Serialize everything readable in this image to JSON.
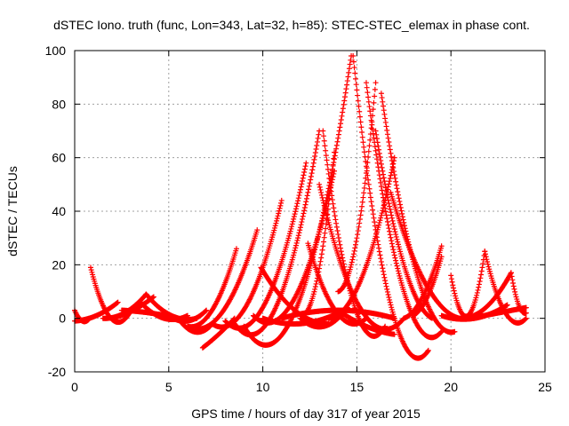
{
  "chart_data": {
    "type": "scatter",
    "title": "dSTEC Iono. truth (func, Lon=343, Lat=32, h=85): STEC-STEC_elemax in phase cont.",
    "xlabel": "GPS time / hours of day 317 of year 2015",
    "ylabel": "dSTEC  / TECUs",
    "xlim": [
      0,
      25
    ],
    "ylim": [
      -20,
      100
    ],
    "xticks": [
      "0",
      "5",
      "10",
      "15",
      "20",
      "25"
    ],
    "yticks": [
      "-20",
      "0",
      "20",
      "40",
      "60",
      "80",
      "100"
    ],
    "grid": true,
    "legend": "none",
    "marker": "plus",
    "color": "#ff0000",
    "arcs": [
      {
        "t0": 0.0,
        "t1": 0.8,
        "v0": 3,
        "vm": -1,
        "v1": 0
      },
      {
        "t0": 0.85,
        "t1": 3.0,
        "v0": 19,
        "vm": 0,
        "v1": 3
      },
      {
        "t0": 0.0,
        "t1": 2.3,
        "v0": -1,
        "vm": 1,
        "v1": 6
      },
      {
        "t0": 1.5,
        "t1": 3.8,
        "v0": 0,
        "vm": 2,
        "v1": 9
      },
      {
        "t0": 2.0,
        "t1": 4.2,
        "v0": 0,
        "vm": 3,
        "v1": 8
      },
      {
        "t0": 3.8,
        "t1": 6.5,
        "v0": 9,
        "vm": 1,
        "v1": 0
      },
      {
        "t0": 3.5,
        "t1": 6.0,
        "v0": 6,
        "vm": 0,
        "v1": 1
      },
      {
        "t0": 2.5,
        "t1": 5.5,
        "v0": 3,
        "vm": 2,
        "v1": 0
      },
      {
        "t0": 5.0,
        "t1": 7.0,
        "v0": 1,
        "vm": -1,
        "v1": 3
      },
      {
        "t0": 5.5,
        "t1": 7.2,
        "v0": 0,
        "vm": -5,
        "v1": -3
      },
      {
        "t0": 6.8,
        "t1": 8.5,
        "v0": -11,
        "vm": -6,
        "v1": 0
      },
      {
        "t0": 6.0,
        "t1": 8.6,
        "v0": -3,
        "vm": 3,
        "v1": 26
      },
      {
        "t0": 6.5,
        "t1": 9.7,
        "v0": -4,
        "vm": 5,
        "v1": 33
      },
      {
        "t0": 7.3,
        "t1": 11.0,
        "v0": -2,
        "vm": 5,
        "v1": 44
      },
      {
        "t0": 8.0,
        "t1": 12.3,
        "v0": -1,
        "vm": 6,
        "v1": 58
      },
      {
        "t0": 8.5,
        "t1": 13.0,
        "v0": -2,
        "vm": 5,
        "v1": 70
      },
      {
        "t0": 9.0,
        "t1": 14.7,
        "v0": -3,
        "vm": 5,
        "v1": 98
      },
      {
        "t0": 9.9,
        "t1": 13.5,
        "v0": 19,
        "vm": 3,
        "v1": -2
      },
      {
        "t0": 9.5,
        "t1": 13.8,
        "v0": 1,
        "vm": 7,
        "v1": 55
      },
      {
        "t0": 12.4,
        "t1": 15.5,
        "v0": 28,
        "vm": 2,
        "v1": 0
      },
      {
        "t0": 12.0,
        "t1": 13.8,
        "v0": 1,
        "vm": 15,
        "v1": 62
      },
      {
        "t0": 13.2,
        "t1": 16.5,
        "v0": 70,
        "vm": 5,
        "v1": -3
      },
      {
        "t0": 13.0,
        "t1": 17.5,
        "v0": 50,
        "vm": 3,
        "v1": 0
      },
      {
        "t0": 14.0,
        "t1": 16.0,
        "v0": 10,
        "vm": 30,
        "v1": 88
      },
      {
        "t0": 13.5,
        "t1": 17.0,
        "v0": 0,
        "vm": 15,
        "v1": 60
      },
      {
        "t0": 14.8,
        "t1": 18.8,
        "v0": 98,
        "vm": 5,
        "v1": -12
      },
      {
        "t0": 15.5,
        "t1": 19.5,
        "v0": 88,
        "vm": 10,
        "v1": -5
      },
      {
        "t0": 16.3,
        "t1": 20.2,
        "v0": 84,
        "vm": 15,
        "v1": -5
      },
      {
        "t0": 16.0,
        "t1": 19.0,
        "v0": 70,
        "vm": 20,
        "v1": 0
      },
      {
        "t0": 16.8,
        "t1": 21.0,
        "v0": 47,
        "vm": 10,
        "v1": 0
      },
      {
        "t0": 17.5,
        "t1": 19.5,
        "v0": 0,
        "vm": 8,
        "v1": 27
      },
      {
        "t0": 18.0,
        "t1": 19.5,
        "v0": 1,
        "vm": 8,
        "v1": 23
      },
      {
        "t0": 20.0,
        "t1": 21.8,
        "v0": 16,
        "vm": 1,
        "v1": 25
      },
      {
        "t0": 21.8,
        "t1": 24.0,
        "v0": 25,
        "vm": 2,
        "v1": 0
      },
      {
        "t0": 20.5,
        "t1": 23.2,
        "v0": 0,
        "vm": 4,
        "v1": 17
      },
      {
        "t0": 23.2,
        "t1": 24.0,
        "v0": 17,
        "vm": 5,
        "v1": 2
      },
      {
        "t0": 21.0,
        "t1": 24.0,
        "v0": 0,
        "vm": 2,
        "v1": 4
      },
      {
        "t0": 19.5,
        "t1": 23.0,
        "v0": 1,
        "vm": 0,
        "v1": 5
      },
      {
        "t0": 11.0,
        "t1": 17.0,
        "v0": 0,
        "vm": 3,
        "v1": 0
      },
      {
        "t0": 14.0,
        "t1": 17.0,
        "v0": 3,
        "vm": -3,
        "v1": -6
      },
      {
        "t0": 10.0,
        "t1": 14.0,
        "v0": 0,
        "vm": -2,
        "v1": 2
      },
      {
        "t0": 12.0,
        "t1": 14.5,
        "v0": 0,
        "vm": -3,
        "v1": 4
      }
    ]
  }
}
